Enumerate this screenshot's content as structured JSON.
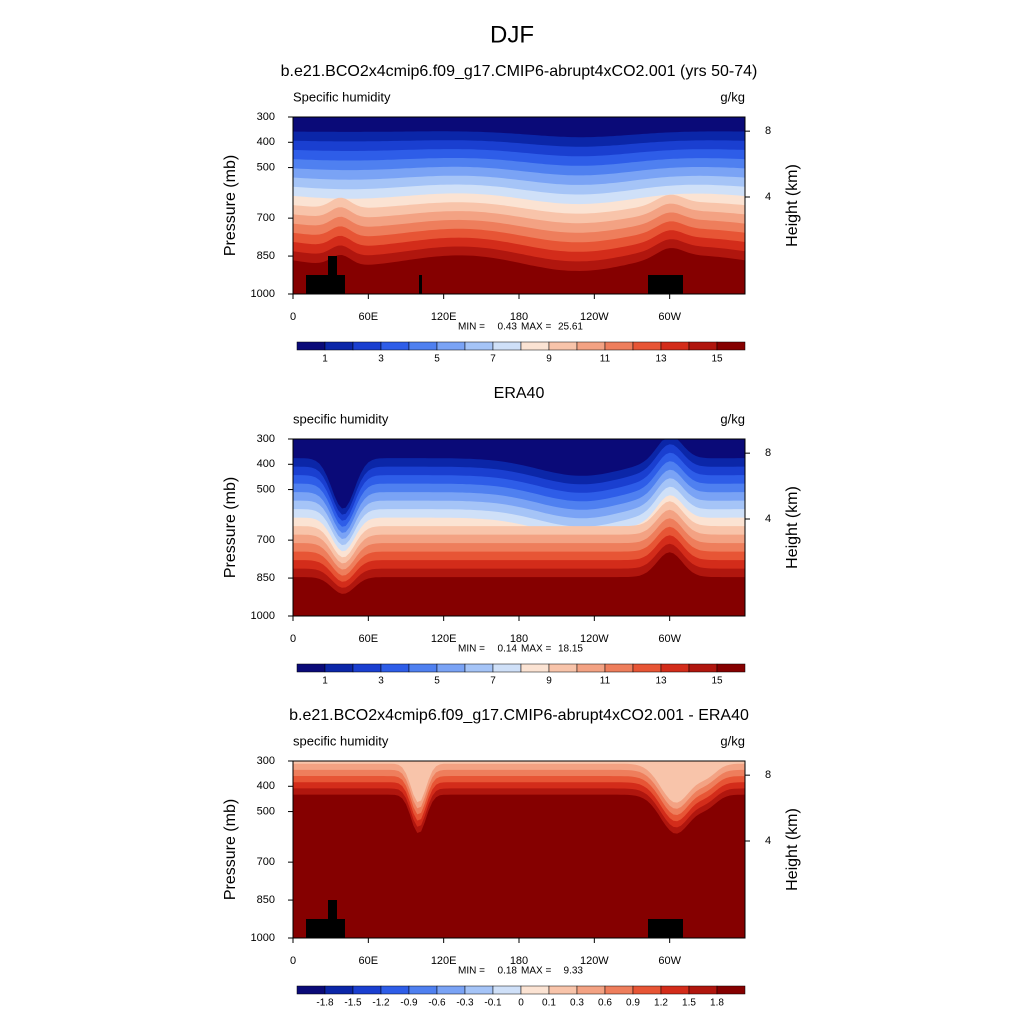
{
  "title": "DJF",
  "chart_data": [
    {
      "type": "contour",
      "title": "b.e21.BCO2x4cmip6.f09_g17.CMIP6-abrupt4xCO2.001 (yrs 50-74)",
      "left_label": "Specific humidity",
      "right_label": "g/kg",
      "ylabel": "Pressure (mb)",
      "y2label": "Height (km)",
      "ylim": [
        300,
        1000
      ],
      "y_inverted": true,
      "yticks": [
        300,
        400,
        500,
        700,
        850,
        1000
      ],
      "y2ticks": [
        8,
        4
      ],
      "xlim": [
        0,
        360
      ],
      "xticks": [
        0,
        {
          "value": 60,
          "label": "60E"
        },
        {
          "value": 120,
          "label": "120E"
        },
        180,
        {
          "value": 240,
          "label": "120W"
        },
        {
          "value": 300,
          "label": "60W"
        }
      ],
      "min_label": "MIN =",
      "min": 0.43,
      "max_label": "MAX =",
      "max": 25.61,
      "colorbar": {
        "colors": [
          "#0a0a78",
          "#0b26a8",
          "#1a3fd0",
          "#2e5de8",
          "#4f80f0",
          "#7aa3f5",
          "#a5c4f7",
          "#cfe0f8",
          "#fbe3d3",
          "#f8c4aa",
          "#f3a283",
          "#ee7e5c",
          "#e75535",
          "#d32c1a",
          "#b0160e",
          "#850000"
        ],
        "levels": [
          1,
          2,
          3,
          4,
          5,
          6,
          7,
          8,
          9,
          10,
          11,
          12,
          13,
          14,
          15
        ],
        "label_every": 2
      }
    },
    {
      "type": "contour",
      "title": "ERA40",
      "left_label": "specific humidity",
      "right_label": "g/kg",
      "ylabel": "Pressure (mb)",
      "y2label": "Height (km)",
      "ylim": [
        300,
        1000
      ],
      "y_inverted": true,
      "yticks": [
        300,
        400,
        500,
        700,
        850,
        1000
      ],
      "y2ticks": [
        8,
        4
      ],
      "xlim": [
        0,
        360
      ],
      "xticks": [
        0,
        {
          "value": 60,
          "label": "60E"
        },
        {
          "value": 120,
          "label": "120E"
        },
        180,
        {
          "value": 240,
          "label": "120W"
        },
        {
          "value": 300,
          "label": "60W"
        }
      ],
      "min_label": "MIN =",
      "min": 0.14,
      "max_label": "MAX =",
      "max": 18.15,
      "colorbar": {
        "colors": [
          "#0a0a78",
          "#0b26a8",
          "#1a3fd0",
          "#2e5de8",
          "#4f80f0",
          "#7aa3f5",
          "#a5c4f7",
          "#cfe0f8",
          "#fbe3d3",
          "#f8c4aa",
          "#f3a283",
          "#ee7e5c",
          "#e75535",
          "#d32c1a",
          "#b0160e",
          "#850000"
        ],
        "levels": [
          1,
          2,
          3,
          4,
          5,
          6,
          7,
          8,
          9,
          10,
          11,
          12,
          13,
          14,
          15
        ],
        "label_every": 2
      }
    },
    {
      "type": "contour",
      "title": "b.e21.BCO2x4cmip6.f09_g17.CMIP6-abrupt4xCO2.001 - ERA40",
      "left_label": "specific humidity",
      "right_label": "g/kg",
      "ylabel": "Pressure (mb)",
      "y2label": "Height (km)",
      "ylim": [
        300,
        1000
      ],
      "y_inverted": true,
      "yticks": [
        300,
        400,
        500,
        700,
        850,
        1000
      ],
      "y2ticks": [
        8,
        4
      ],
      "xlim": [
        0,
        360
      ],
      "xticks": [
        0,
        {
          "value": 60,
          "label": "60E"
        },
        {
          "value": 120,
          "label": "120E"
        },
        180,
        {
          "value": 240,
          "label": "120W"
        },
        {
          "value": 300,
          "label": "60W"
        }
      ],
      "min_label": "MIN =",
      "min": 0.18,
      "max_label": "MAX =",
      "max": 9.33,
      "colorbar": {
        "colors": [
          "#0a0a78",
          "#0b26a8",
          "#1a3fd0",
          "#2e5de8",
          "#4f80f0",
          "#7aa3f5",
          "#a5c4f7",
          "#cfe0f8",
          "#fbe3d3",
          "#f8c4aa",
          "#f3a283",
          "#ee7e5c",
          "#e75535",
          "#d32c1a",
          "#b0160e",
          "#850000"
        ],
        "levels": [
          -1.8,
          -1.5,
          -1.2,
          -0.9,
          -0.6,
          -0.3,
          -0.1,
          0,
          0.1,
          0.3,
          0.6,
          0.9,
          1.2,
          1.5,
          1.8
        ],
        "label_every": 1
      }
    }
  ]
}
